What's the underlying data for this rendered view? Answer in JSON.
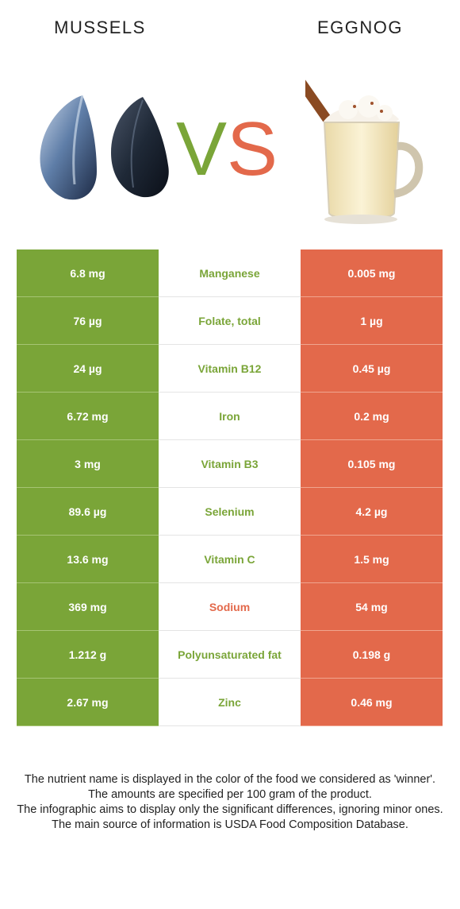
{
  "header": {
    "left_food": "MUSSELS",
    "right_food": "EGGNOG",
    "vs_v": "V",
    "vs_s": "S"
  },
  "colors": {
    "left_winner": "#7aa538",
    "right_winner": "#e3694b"
  },
  "rows": [
    {
      "left": "6.8 mg",
      "nutrient": "Manganese",
      "right": "0.005 mg",
      "winner": "left"
    },
    {
      "left": "76 µg",
      "nutrient": "Folate, total",
      "right": "1 µg",
      "winner": "left"
    },
    {
      "left": "24 µg",
      "nutrient": "Vitamin B12",
      "right": "0.45 µg",
      "winner": "left"
    },
    {
      "left": "6.72 mg",
      "nutrient": "Iron",
      "right": "0.2 mg",
      "winner": "left"
    },
    {
      "left": "3 mg",
      "nutrient": "Vitamin B3",
      "right": "0.105 mg",
      "winner": "left"
    },
    {
      "left": "89.6 µg",
      "nutrient": "Selenium",
      "right": "4.2 µg",
      "winner": "left"
    },
    {
      "left": "13.6 mg",
      "nutrient": "Vitamin C",
      "right": "1.5 mg",
      "winner": "left"
    },
    {
      "left": "369 mg",
      "nutrient": "Sodium",
      "right": "54 mg",
      "winner": "right"
    },
    {
      "left": "1.212 g",
      "nutrient": "Polyunsaturated fat",
      "right": "0.198 g",
      "winner": "left"
    },
    {
      "left": "2.67 mg",
      "nutrient": "Zinc",
      "right": "0.46 mg",
      "winner": "left"
    }
  ],
  "footer": {
    "line1": "The nutrient name is displayed in the color of the food we considered as 'winner'.",
    "line2": "The amounts are specified per 100 gram of the product.",
    "line3": "The infographic aims to display only the significant differences, ignoring minor ones.",
    "line4": "The main source of information is USDA Food Composition Database."
  }
}
